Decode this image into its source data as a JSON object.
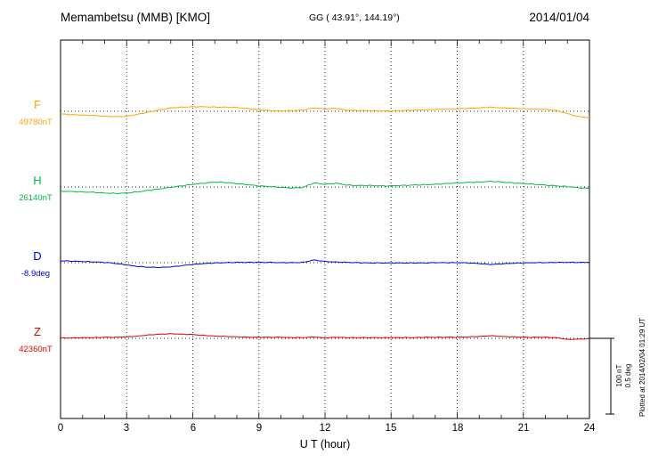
{
  "header": {
    "station": "Memambetsu (MMB)  [KMO]",
    "coords": "GG ( 43.91°, 144.19°)",
    "date": "2014/01/04"
  },
  "axis": {
    "x_label": "U T (hour)",
    "x_ticks": [
      0,
      3,
      6,
      9,
      12,
      15,
      18,
      21,
      24
    ],
    "x_range": [
      0,
      24
    ]
  },
  "scale_bar": {
    "nt_label": "100 nT",
    "deg_label": "0.5 deg"
  },
  "footer_note": "Plotted at 2014/02/04 01:29 UT",
  "chart_data": {
    "type": "line",
    "title": "Memambetsu (MMB) [KMO] magnetogram 2014/01/04",
    "xlabel": "U T (hour)",
    "x_unit": "hour UT",
    "x_range": [
      0,
      24
    ],
    "x_step": 0.5,
    "grid": "dotted vertical every 3 h, dotted horizontal baseline per component",
    "scale": {
      "nT_per_bar": 100,
      "deg_per_bar": 0.5
    },
    "series": [
      {
        "name": "F",
        "baseline_label": "49780nT",
        "baseline_value": 49780,
        "unit": "nT",
        "color": "#ffa500",
        "noise": 0.5,
        "offsets": [
          -3.5,
          -4.5,
          -5,
          -5.5,
          -6.5,
          -7,
          -6.5,
          -4,
          -1,
          2,
          4.5,
          5.5,
          6,
          6,
          5.5,
          5.5,
          5,
          3.5,
          2,
          1,
          0.5,
          1,
          1.5,
          4.5,
          3,
          4,
          1.5,
          1,
          1,
          0.5,
          0.5,
          1,
          1.5,
          2,
          2.5,
          3,
          3.5,
          4,
          4.5,
          5.5,
          4.5,
          4,
          3.5,
          3,
          2.5,
          1,
          -3,
          -7,
          -8.5
        ]
      },
      {
        "name": "H",
        "baseline_label": "26140nT",
        "baseline_value": 26140,
        "unit": "nT",
        "color": "#00bb44",
        "noise": 0.6,
        "offsets": [
          -5.5,
          -6,
          -6.5,
          -7,
          -8,
          -8.5,
          -8,
          -6.5,
          -4.5,
          -2.5,
          -0.5,
          1.5,
          3.5,
          5,
          6.5,
          6,
          4.5,
          3,
          1.5,
          0.5,
          -0.5,
          -1.5,
          -0.5,
          5.5,
          3.5,
          5,
          2.5,
          2,
          2,
          1.5,
          1.5,
          2,
          2.5,
          3,
          3.5,
          4.5,
          5.5,
          6,
          6.5,
          7.5,
          6.5,
          5.5,
          4.5,
          3.5,
          2.5,
          1.5,
          0.5,
          -1,
          -2
        ]
      },
      {
        "name": "D",
        "baseline_label": "-8.9deg",
        "baseline_value": -8.9,
        "unit": "deg",
        "color": "#0000dd",
        "noise": 0.0025,
        "offsets": [
          0.012,
          0.01,
          0.008,
          0.005,
          0.002,
          -0.005,
          -0.015,
          -0.025,
          -0.03,
          -0.032,
          -0.028,
          -0.02,
          -0.012,
          -0.006,
          -0.002,
          0.0,
          0.002,
          0.002,
          0.002,
          0.002,
          0.0,
          0.0,
          0.002,
          0.018,
          0.008,
          0.004,
          0.002,
          0.0,
          -0.002,
          -0.002,
          -0.002,
          -0.002,
          -0.002,
          -0.002,
          0.0,
          0.0,
          0.0,
          -0.002,
          -0.006,
          -0.012,
          -0.008,
          -0.004,
          -0.002,
          0.0,
          0.0,
          0.002,
          0.002,
          0.002,
          0.002
        ]
      },
      {
        "name": "Z",
        "baseline_label": "42360nT",
        "baseline_value": 42360,
        "unit": "nT",
        "color": "#dd0000",
        "noise": 0.4,
        "offsets": [
          0.5,
          0.5,
          1,
          1,
          1.5,
          1.5,
          2,
          3,
          4.5,
          5.5,
          6,
          5.5,
          5,
          4,
          3,
          2.5,
          2,
          1.5,
          1.5,
          1.5,
          1.5,
          1,
          1,
          2,
          0.5,
          1.5,
          1,
          1,
          1,
          1,
          1,
          1,
          1,
          1.5,
          1.5,
          1.5,
          1.5,
          2,
          2.5,
          3.5,
          2.5,
          2,
          1.5,
          1.5,
          1.5,
          1,
          -1.5,
          -1,
          -0.5
        ]
      }
    ]
  }
}
